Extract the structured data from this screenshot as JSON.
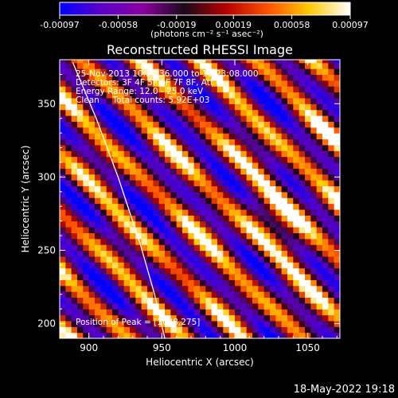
{
  "chart_data": {
    "type": "heatmap",
    "title": "Reconstructed RHESSI Image",
    "xlabel": "Heliocentric X (arcsec)",
    "ylabel": "Heliocentric Y (arcsec)",
    "xlim": [
      880,
      1072
    ],
    "ylim": [
      190,
      380
    ],
    "x_ticks": [
      {
        "value": 900,
        "label": "900"
      },
      {
        "value": 950,
        "label": "950"
      },
      {
        "value": 1000,
        "label": "1000"
      },
      {
        "value": 1050,
        "label": "1050"
      }
    ],
    "y_ticks": [
      {
        "value": 200,
        "label": "200"
      },
      {
        "value": 250,
        "label": "250"
      },
      {
        "value": 300,
        "label": "300"
      },
      {
        "value": 350,
        "label": "350"
      }
    ],
    "colorbar": {
      "range": [
        -0.00097,
        0.00097
      ],
      "ticks": [
        {
          "value": -0.00097,
          "label": "-0.00097"
        },
        {
          "value": -0.00058,
          "label": "-0.00058"
        },
        {
          "value": -0.00019,
          "label": "-0.00019"
        },
        {
          "value": 0.00019,
          "label": "0.00019"
        },
        {
          "value": 0.00058,
          "label": "0.00058"
        },
        {
          "value": 0.00097,
          "label": "0.00097"
        }
      ],
      "unit_label": "(photons cm⁻² s⁻¹ asec⁻²)",
      "colors": [
        "#0000ff",
        "#5a00c8",
        "#8c00a0",
        "#1a0a1a",
        "#b40000",
        "#ff5000",
        "#ffc800",
        "#ffffff"
      ]
    },
    "annotations": {
      "time": "25-Nov-2013 10:20:36.000 to 10:23:08.000",
      "detectors": "Detectors: 3F 4F 5F 6F 7F 8F, Att 0",
      "energy": "Energy Range: 12.0 - 25.0 keV",
      "clean": "Clean     Total counts: 5.92E+03",
      "peak": "Position of Peak = [1038,275]"
    },
    "peak": {
      "x": 1038,
      "y": 275
    },
    "limb_curve": [
      {
        "x": 889,
        "y": 378
      },
      {
        "x": 905,
        "y": 340
      },
      {
        "x": 920,
        "y": 300
      },
      {
        "x": 935,
        "y": 255
      },
      {
        "x": 945,
        "y": 220
      },
      {
        "x": 952,
        "y": 190
      }
    ]
  },
  "footer": {
    "date_stamp": "18-May-2022 19:18"
  }
}
